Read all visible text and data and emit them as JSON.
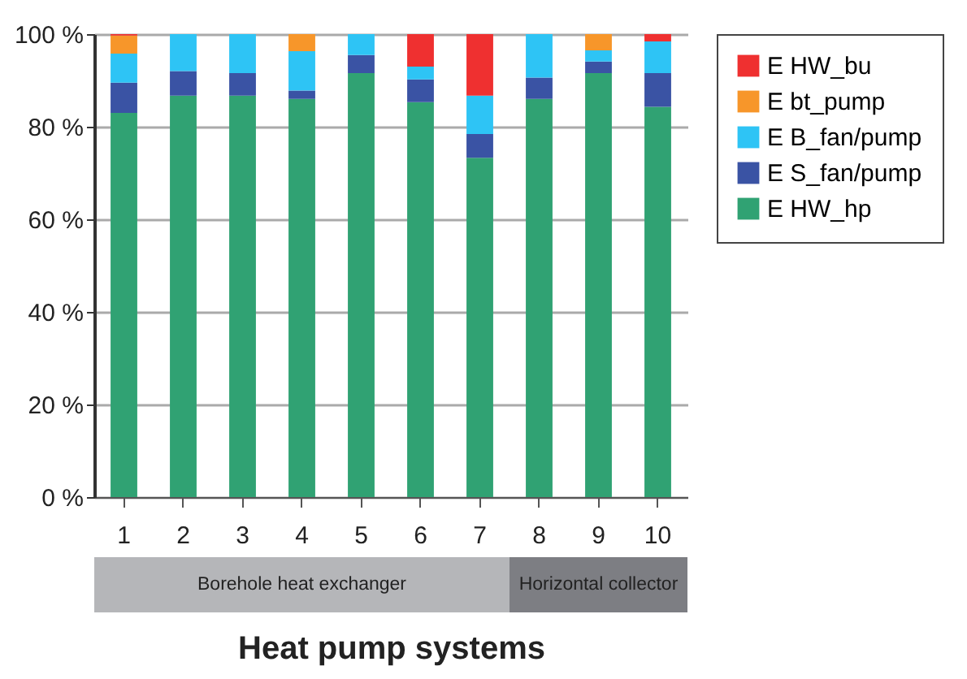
{
  "chart_data": {
    "type": "bar",
    "stacked": true,
    "xlabel": "Heat pump systems",
    "categories": [
      "1",
      "2",
      "3",
      "4",
      "5",
      "6",
      "7",
      "8",
      "9",
      "10"
    ],
    "series": [
      {
        "name": "E HW_hp",
        "color": "#30a273",
        "values": [
          83,
          86.7,
          86.7,
          86,
          91.6,
          85.3,
          73.3,
          86,
          91.6,
          84.3
        ]
      },
      {
        "name": "E S_fan/pump",
        "color": "#3a53a4",
        "values": [
          6.5,
          5.3,
          4.9,
          1.8,
          3.9,
          4.9,
          5.1,
          4.6,
          2.5,
          7.3
        ]
      },
      {
        "name": "E B_fan/pump",
        "color": "#2ec4f5",
        "values": [
          6.3,
          8,
          8.4,
          8.5,
          4.5,
          2.8,
          8.3,
          9.4,
          2.4,
          6.8
        ]
      },
      {
        "name": "E bt_pump",
        "color": "#f7962a",
        "values": [
          3.9,
          null,
          null,
          3.7,
          null,
          null,
          null,
          null,
          3.5,
          null
        ]
      },
      {
        "name": "E HW_bu",
        "color": "#ef3030",
        "values": [
          0.3,
          null,
          null,
          null,
          null,
          7,
          13.3,
          null,
          null,
          1.6
        ]
      }
    ],
    "ylim": [
      0,
      100
    ],
    "yticks": [
      {
        "value": 0,
        "label": "0 %"
      },
      {
        "value": 20,
        "label": "20 %"
      },
      {
        "value": 40,
        "label": "40 %"
      },
      {
        "value": 60,
        "label": "60 %"
      },
      {
        "value": 80,
        "label": "80 %"
      },
      {
        "value": 100,
        "label": "100 %"
      }
    ],
    "grid": "y",
    "legend": "right",
    "annotations": [
      "Borehole heat exchanger",
      "Horizontal collector"
    ]
  }
}
